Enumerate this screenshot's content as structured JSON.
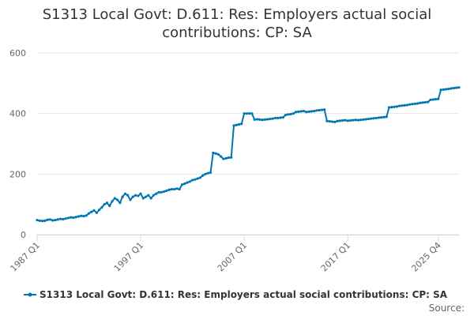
{
  "chart_data": {
    "type": "line",
    "title_line1": "S1313 Local Govt: D.611: Res: Employers actual social",
    "title_line2": "contributions: CP: SA",
    "xlabel": "",
    "ylabel": "",
    "ylim": [
      0,
      600
    ],
    "yticks": [
      "0",
      "200",
      "400",
      "600"
    ],
    "xticks": [
      "1987 Q1",
      "1997 Q1",
      "2007 Q1",
      "2017 Q1",
      "2025 Q4"
    ],
    "grid": true,
    "legend_position": "bottom",
    "source_label": "Source:",
    "color": "#0077b3",
    "series": [
      {
        "name": "S1313 Local Govt: D.611: Res: Employers actual social contributions: CP: SA",
        "start": "1987 Q1",
        "values": [
          48,
          46,
          45,
          46,
          49,
          50,
          47,
          48,
          50,
          52,
          51,
          53,
          55,
          57,
          56,
          58,
          60,
          62,
          61,
          63,
          70,
          75,
          80,
          72,
          82,
          90,
          100,
          105,
          95,
          110,
          120,
          115,
          105,
          125,
          135,
          130,
          115,
          125,
          130,
          128,
          135,
          120,
          125,
          130,
          120,
          130,
          135,
          140,
          140,
          142,
          145,
          148,
          150,
          150,
          152,
          150,
          165,
          168,
          172,
          175,
          180,
          182,
          185,
          188,
          195,
          200,
          203,
          205,
          270,
          268,
          265,
          258,
          250,
          252,
          254,
          255,
          360,
          362,
          364,
          366,
          400,
          400,
          400,
          400,
          380,
          381,
          380,
          379,
          380,
          381,
          382,
          383,
          385,
          385,
          386,
          387,
          395,
          397,
          398,
          400,
          405,
          406,
          407,
          408,
          405,
          406,
          407,
          408,
          410,
          411,
          412,
          413,
          375,
          374,
          373,
          372,
          375,
          376,
          377,
          378,
          376,
          377,
          378,
          379,
          378,
          379,
          380,
          381,
          382,
          383,
          384,
          385,
          386,
          387,
          388,
          389,
          420,
          421,
          422,
          423,
          425,
          426,
          427,
          428,
          430,
          431,
          432,
          433,
          435,
          436,
          437,
          438,
          445,
          446,
          447,
          448,
          478,
          479,
          480,
          481,
          483,
          484,
          485,
          486
        ]
      }
    ]
  }
}
